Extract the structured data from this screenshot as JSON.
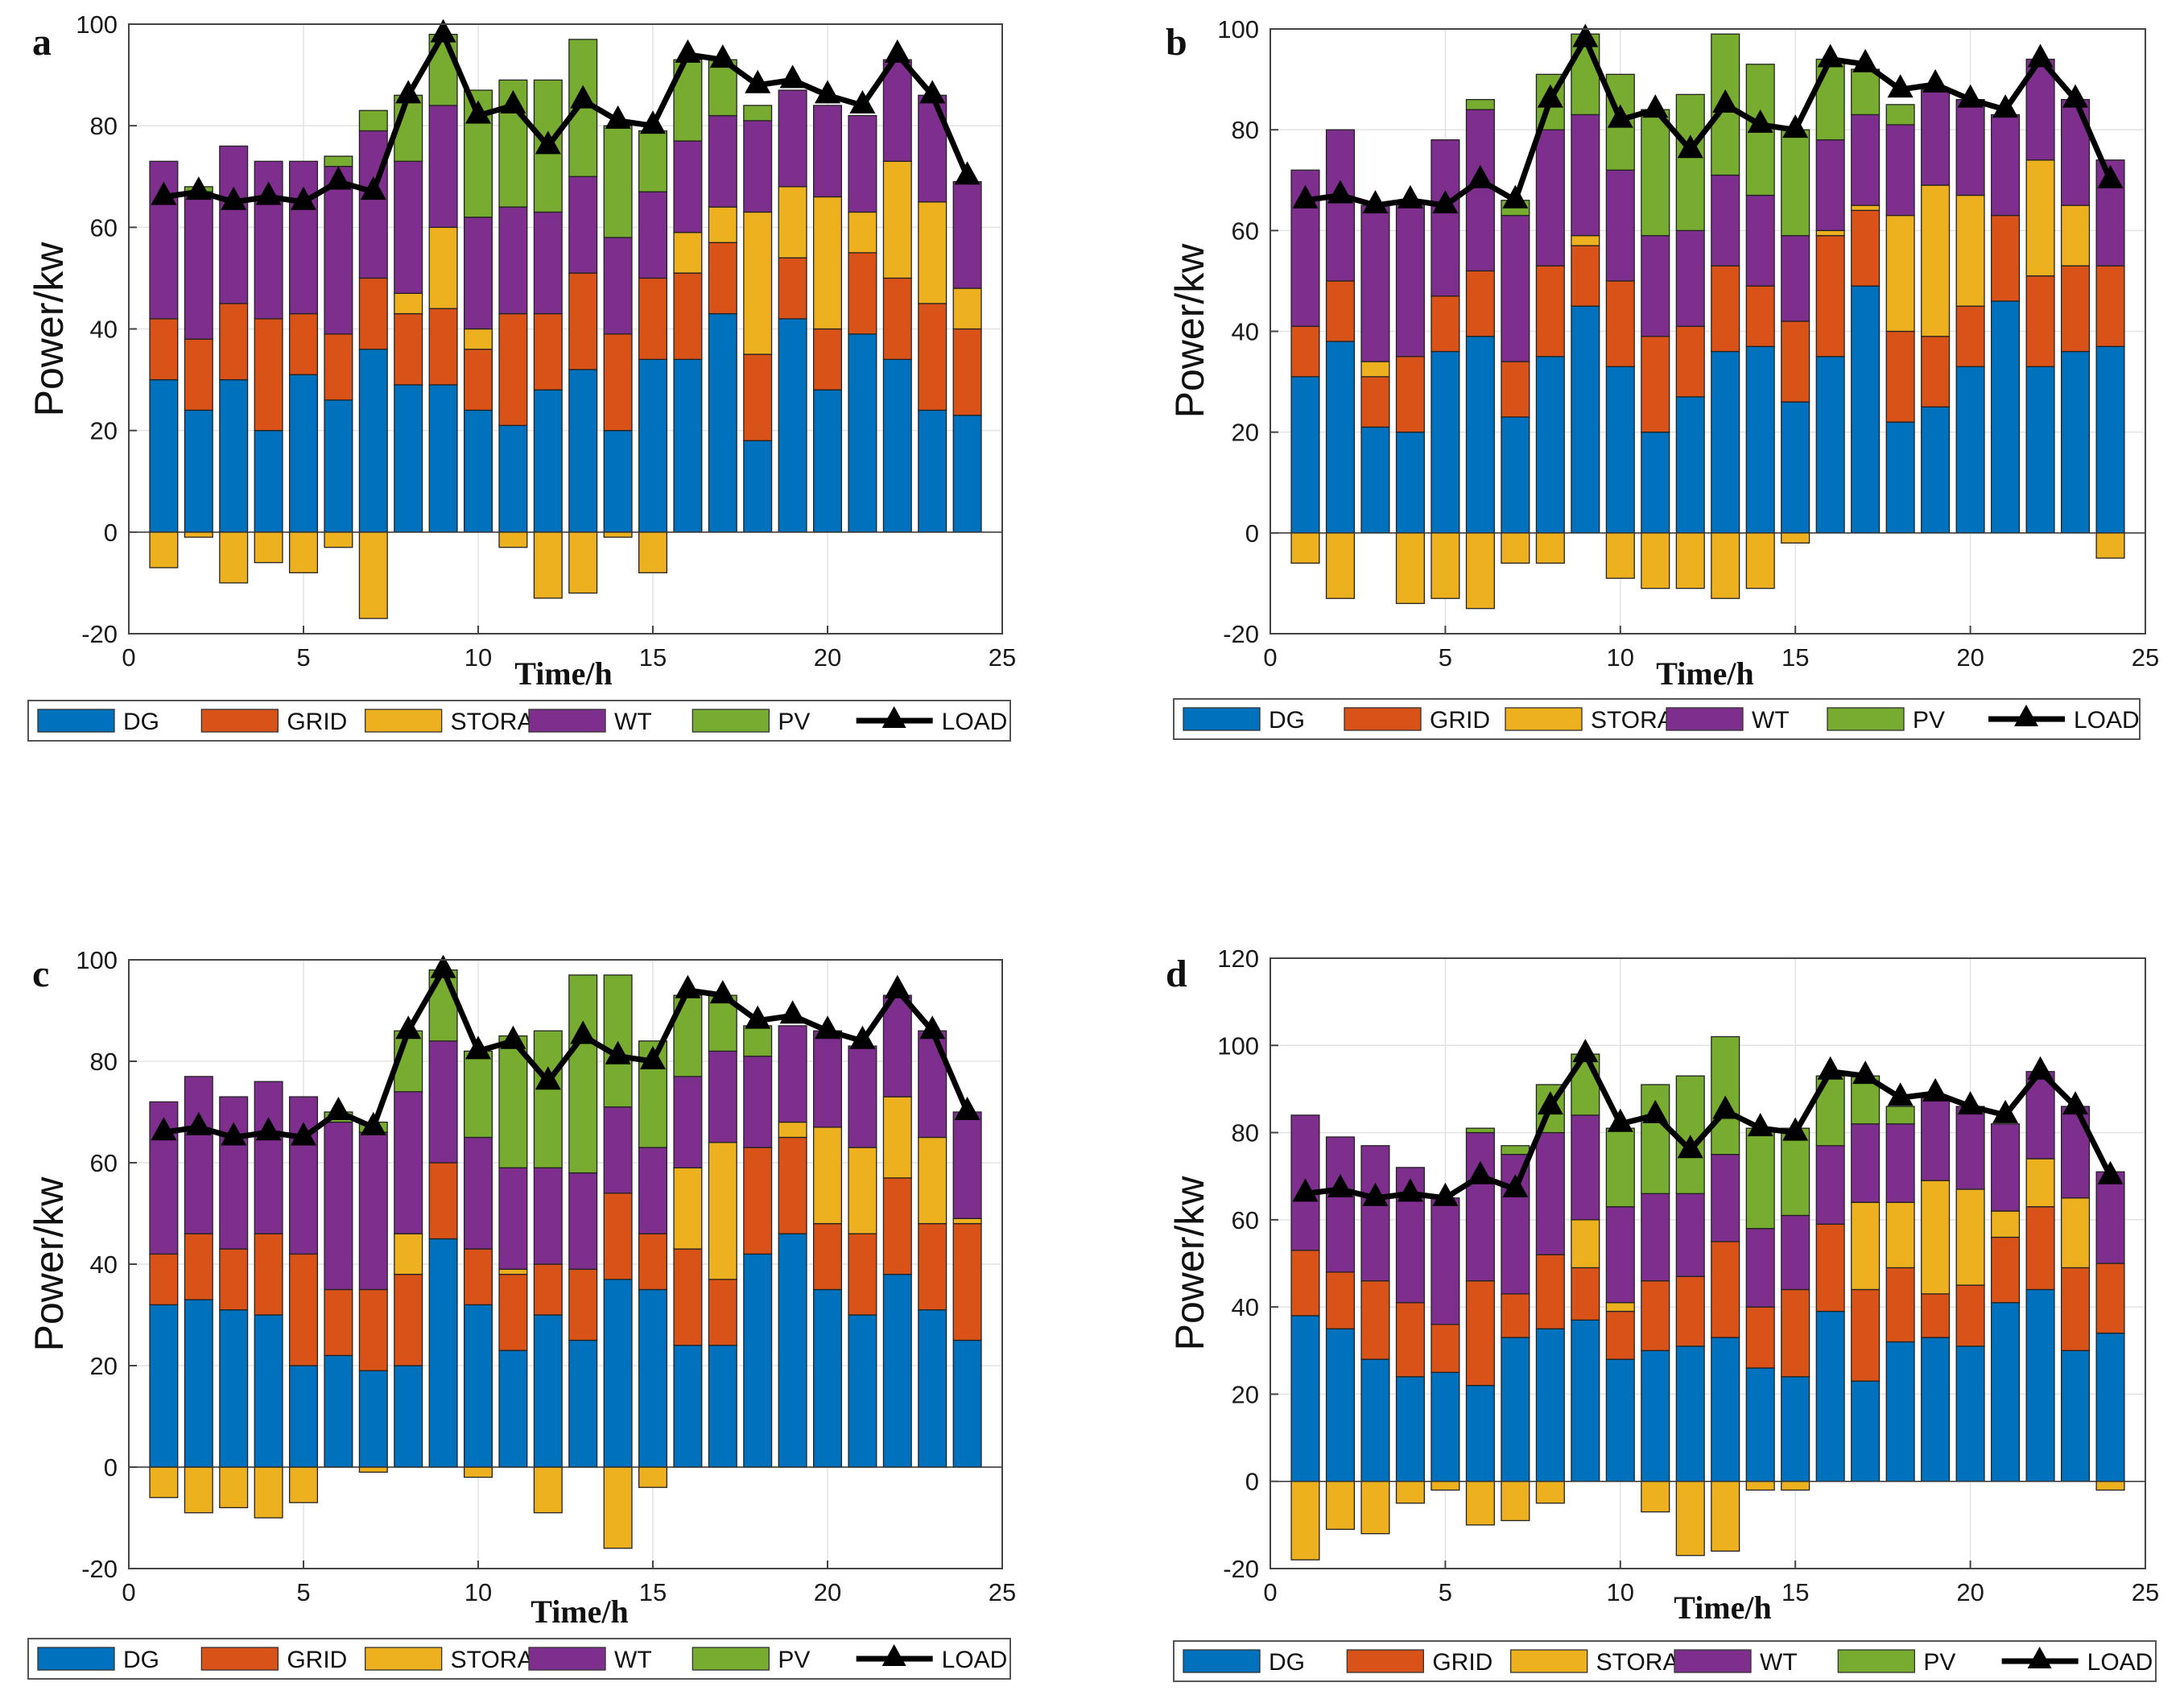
{
  "legend": [
    "DG",
    "GRID",
    "STORAGE",
    "WT",
    "PV",
    "LOAD"
  ],
  "colors": {
    "DG": "#0072BD",
    "GRID": "#D95319",
    "STORAGE": "#EDB120",
    "WT": "#7E2F8E",
    "PV": "#77AC30",
    "LOAD": "#000000"
  },
  "chart_data": [
    {
      "label": "a",
      "type": "bar",
      "stacked": true,
      "xlabel": "Time/h",
      "ylabel": "Power/kw",
      "xlim": [
        0,
        25
      ],
      "ylim": [
        -20,
        100
      ],
      "xticks": [
        "0",
        "5",
        "10",
        "15",
        "20",
        "25"
      ],
      "yticks": [
        "-20",
        "0",
        "20",
        "40",
        "60",
        "80",
        "100"
      ],
      "x": [
        1,
        2,
        3,
        4,
        5,
        6,
        7,
        8,
        9,
        10,
        11,
        12,
        13,
        14,
        15,
        16,
        17,
        18,
        19,
        20,
        21,
        22,
        23,
        24
      ],
      "series": [
        {
          "name": "DG",
          "values": [
            30,
            24,
            30,
            20,
            31,
            26,
            36,
            29,
            29,
            24,
            21,
            28,
            32,
            20,
            34,
            34,
            43,
            18,
            42,
            28,
            39,
            34,
            24,
            23
          ]
        },
        {
          "name": "GRID",
          "values": [
            12,
            14,
            15,
            22,
            12,
            13,
            14,
            14,
            15,
            12,
            22,
            15,
            19,
            19,
            16,
            17,
            14,
            17,
            12,
            12,
            16,
            16,
            21,
            17
          ]
        },
        {
          "name": "STORAGE",
          "values": [
            -7,
            -1,
            -10,
            -6,
            -8,
            -3,
            -17,
            4,
            16,
            4,
            -3,
            -13,
            -12,
            -1,
            -8,
            8,
            7,
            28,
            14,
            26,
            8,
            23,
            20,
            8
          ]
        },
        {
          "name": "WT",
          "values": [
            31,
            29,
            31,
            31,
            30,
            33,
            29,
            26,
            24,
            22,
            21,
            20,
            19,
            19,
            17,
            18,
            18,
            18,
            19,
            18,
            19,
            20,
            21,
            21
          ]
        },
        {
          "name": "PV",
          "values": [
            0,
            1,
            0,
            0,
            0,
            2,
            4,
            13,
            14,
            25,
            25,
            26,
            27,
            22,
            12,
            16,
            11,
            3,
            0,
            0,
            0,
            0,
            0,
            0
          ]
        }
      ],
      "load": [
        66,
        67,
        65,
        66,
        65,
        69,
        67,
        86,
        98,
        82,
        84,
        76,
        85,
        81,
        80,
        94,
        93,
        88,
        89,
        86,
        84,
        94,
        86,
        70
      ]
    },
    {
      "label": "b",
      "type": "bar",
      "stacked": true,
      "xlabel": "Time/h",
      "ylabel": "Power/kw",
      "xlim": [
        0,
        25
      ],
      "ylim": [
        -20,
        100
      ],
      "xticks": [
        "0",
        "5",
        "10",
        "15",
        "20",
        "25"
      ],
      "yticks": [
        "-20",
        "0",
        "20",
        "40",
        "60",
        "80",
        "100"
      ],
      "x": [
        1,
        2,
        3,
        4,
        5,
        6,
        7,
        8,
        9,
        10,
        11,
        12,
        13,
        14,
        15,
        16,
        17,
        18,
        19,
        20,
        21,
        22,
        23,
        24
      ],
      "series": [
        {
          "name": "DG",
          "values": [
            31,
            38,
            21,
            20,
            36,
            39,
            23,
            35,
            45,
            33,
            20,
            27,
            36,
            37,
            26,
            35,
            49,
            22,
            25,
            33,
            46,
            33,
            36,
            37
          ]
        },
        {
          "name": "GRID",
          "values": [
            10,
            12,
            10,
            15,
            11,
            13,
            11,
            18,
            12,
            17,
            19,
            14,
            17,
            12,
            16,
            24,
            15,
            18,
            14,
            12,
            17,
            18,
            17,
            16
          ]
        },
        {
          "name": "STORAGE",
          "values": [
            -6,
            -13,
            3,
            -14,
            -13,
            -15,
            -6,
            -6,
            2,
            -9,
            -11,
            -11,
            -13,
            -11,
            -2,
            1,
            1,
            23,
            30,
            22,
            0,
            23,
            12,
            -5
          ]
        },
        {
          "name": "WT",
          "values": [
            31,
            30,
            31,
            31,
            31,
            32,
            29,
            27,
            24,
            22,
            20,
            19,
            18,
            18,
            17,
            18,
            18,
            18,
            19,
            19,
            20,
            20,
            21,
            21
          ]
        },
        {
          "name": "PV",
          "values": [
            0,
            0,
            0,
            0,
            0,
            2,
            3,
            11,
            16,
            19,
            25,
            27,
            28,
            26,
            21,
            16,
            9,
            4,
            0,
            0,
            0,
            0,
            0,
            0
          ]
        }
      ],
      "load": [
        66,
        67,
        65,
        66,
        65,
        70,
        66,
        86,
        98,
        82,
        84,
        76,
        85,
        81,
        80,
        94,
        93,
        88,
        89,
        86,
        84,
        94,
        86,
        70
      ]
    },
    {
      "label": "c",
      "type": "bar",
      "stacked": true,
      "xlabel": "Time/h",
      "ylabel": "Power/kw",
      "xlim": [
        0,
        25
      ],
      "ylim": [
        -20,
        100
      ],
      "xticks": [
        "0",
        "5",
        "10",
        "15",
        "20",
        "25"
      ],
      "yticks": [
        "-20",
        "0",
        "20",
        "40",
        "60",
        "80",
        "100"
      ],
      "x": [
        1,
        2,
        3,
        4,
        5,
        6,
        7,
        8,
        9,
        10,
        11,
        12,
        13,
        14,
        15,
        16,
        17,
        18,
        19,
        20,
        21,
        22,
        23,
        24
      ],
      "series": [
        {
          "name": "DG",
          "values": [
            32,
            33,
            31,
            30,
            20,
            22,
            19,
            20,
            45,
            32,
            23,
            30,
            25,
            37,
            35,
            24,
            24,
            42,
            46,
            35,
            30,
            38,
            31,
            25
          ]
        },
        {
          "name": "GRID",
          "values": [
            10,
            13,
            12,
            16,
            22,
            13,
            16,
            18,
            15,
            11,
            15,
            10,
            14,
            17,
            11,
            19,
            13,
            21,
            19,
            13,
            16,
            19,
            17,
            23
          ]
        },
        {
          "name": "STORAGE",
          "values": [
            -6,
            -9,
            -8,
            -10,
            -7,
            0,
            -1,
            8,
            0,
            -2,
            1,
            -9,
            0,
            -16,
            -4,
            16,
            27,
            0,
            3,
            19,
            17,
            16,
            17,
            1
          ]
        },
        {
          "name": "WT",
          "values": [
            30,
            31,
            30,
            30,
            31,
            33,
            31,
            28,
            24,
            22,
            20,
            19,
            19,
            17,
            17,
            18,
            18,
            18,
            19,
            19,
            20,
            20,
            21,
            21
          ]
        },
        {
          "name": "PV",
          "values": [
            0,
            0,
            0,
            0,
            0,
            2,
            2,
            12,
            14,
            17,
            26,
            27,
            39,
            26,
            21,
            16,
            11,
            6,
            0,
            0,
            0,
            0,
            0,
            0
          ]
        }
      ],
      "load": [
        66,
        67,
        65,
        66,
        65,
        70,
        67,
        86,
        98,
        82,
        84,
        76,
        85,
        81,
        80,
        94,
        93,
        88,
        89,
        86,
        84,
        94,
        86,
        70
      ]
    },
    {
      "label": "d",
      "type": "bar",
      "stacked": true,
      "xlabel": "Time/h",
      "ylabel": "Power/kw",
      "xlim": [
        0,
        25
      ],
      "ylim": [
        -20,
        120
      ],
      "xticks": [
        "0",
        "5",
        "10",
        "15",
        "20",
        "25"
      ],
      "yticks": [
        "-20",
        "0",
        "20",
        "40",
        "60",
        "80",
        "100",
        "120"
      ],
      "x": [
        1,
        2,
        3,
        4,
        5,
        6,
        7,
        8,
        9,
        10,
        11,
        12,
        13,
        14,
        15,
        16,
        17,
        18,
        19,
        20,
        21,
        22,
        23,
        24
      ],
      "series": [
        {
          "name": "DG",
          "values": [
            38,
            35,
            28,
            24,
            25,
            22,
            33,
            35,
            37,
            28,
            30,
            31,
            33,
            26,
            24,
            39,
            23,
            32,
            33,
            31,
            41,
            44,
            30,
            34
          ]
        },
        {
          "name": "GRID",
          "values": [
            15,
            13,
            18,
            17,
            11,
            24,
            10,
            17,
            12,
            11,
            16,
            16,
            22,
            14,
            20,
            20,
            21,
            17,
            10,
            14,
            15,
            19,
            19,
            16
          ]
        },
        {
          "name": "STORAGE",
          "values": [
            -18,
            -11,
            -12,
            -5,
            -2,
            -10,
            -9,
            -5,
            11,
            2,
            -7,
            -17,
            -16,
            -2,
            -2,
            0,
            20,
            15,
            26,
            22,
            6,
            11,
            16,
            -2
          ]
        },
        {
          "name": "WT",
          "values": [
            31,
            31,
            31,
            31,
            29,
            34,
            32,
            28,
            24,
            22,
            20,
            19,
            20,
            18,
            17,
            18,
            18,
            18,
            19,
            19,
            20,
            20,
            21,
            21
          ]
        },
        {
          "name": "PV",
          "values": [
            0,
            0,
            0,
            0,
            0,
            1,
            2,
            11,
            14,
            18,
            25,
            27,
            27,
            23,
            20,
            16,
            11,
            4,
            0,
            0,
            0,
            0,
            0,
            0
          ]
        }
      ],
      "load": [
        66,
        67,
        65,
        66,
        65,
        70,
        67,
        86,
        98,
        82,
        84,
        76,
        85,
        81,
        80,
        94,
        93,
        88,
        89,
        86,
        84,
        94,
        86,
        70
      ]
    }
  ]
}
